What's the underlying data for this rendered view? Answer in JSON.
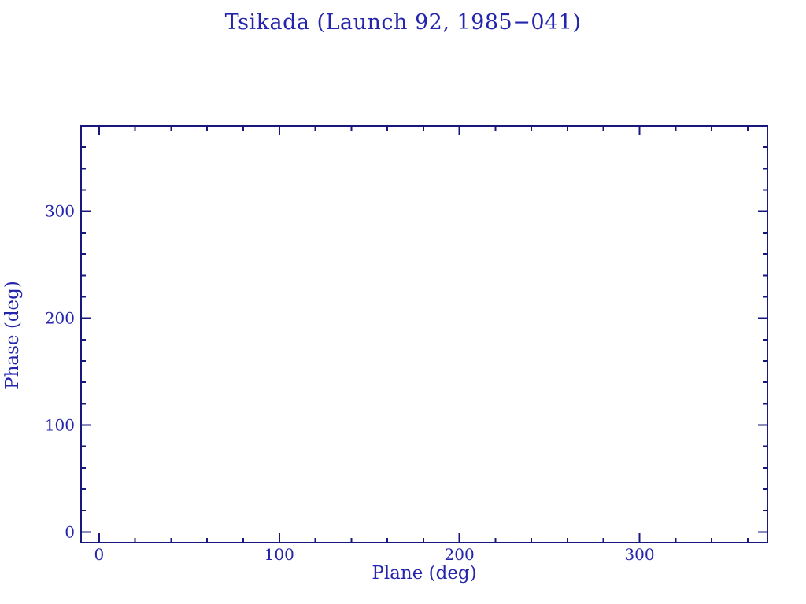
{
  "colors": {
    "background": "#ffffff",
    "text": "#2424ac",
    "axis": "#17177e"
  },
  "chart_data": {
    "type": "scatter",
    "title": "Tsikada (Launch 92, 1985−041)",
    "xlabel": "Plane (deg)",
    "ylabel": "Phase (deg)",
    "xlim": [
      -10,
      371
    ],
    "ylim": [
      -10,
      380
    ],
    "x_major_ticks": [
      0,
      100,
      200,
      300
    ],
    "y_major_ticks": [
      0,
      100,
      200,
      300
    ],
    "x_minor_step": 20,
    "y_minor_step": 20,
    "x_tick_labels": [
      "0",
      "100",
      "200",
      "300"
    ],
    "y_tick_labels": [
      "0",
      "100",
      "200",
      "300"
    ],
    "grid": false,
    "legend": null,
    "frame": true,
    "ticks_direction": "in",
    "mirrored_ticks": true,
    "series": []
  }
}
